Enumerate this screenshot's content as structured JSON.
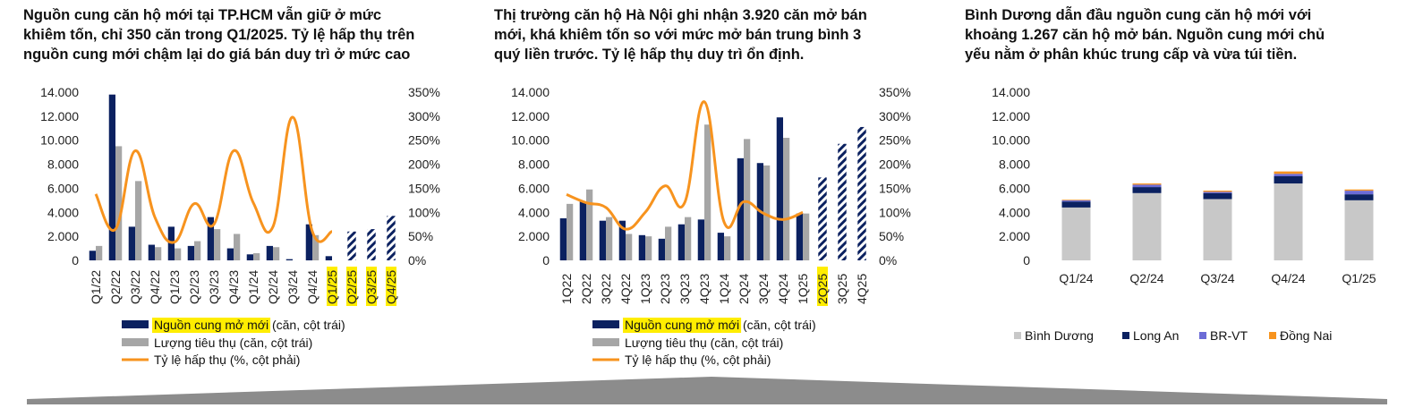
{
  "colors": {
    "supply": "#0b2160",
    "sales": "#a6a6a6",
    "absorption": "#f7931e",
    "highlight": "#ffed00",
    "binh_duong": "#c8c8c8",
    "long_an": "#0b2160",
    "br_vt": "#6b6bd6",
    "dong_nai": "#f7931e",
    "footer": "#8c8c8c"
  },
  "chart_data": [
    {
      "type": "bar",
      "title_lines": [
        "Nguồn cung căn hộ mới tại TP.HCM vẫn giữ ở mức",
        "khiêm tốn, chỉ 350 căn trong Q1/2025. Tỷ lệ hấp thụ trên",
        "nguồn cung mới chậm lại do giá bán duy trì ở mức cao"
      ],
      "categories": [
        "Q1/22",
        "Q2/22",
        "Q3/22",
        "Q4/22",
        "Q1/23",
        "Q2/23",
        "Q3/23",
        "Q4/23",
        "Q1/24",
        "Q2/24",
        "Q3/24",
        "Q4/24",
        "Q1/25",
        "Q2/25",
        "Q3/25",
        "Q4/25"
      ],
      "highlight_categories": [
        "Q1/25",
        "Q2/25",
        "Q3/25",
        "Q4/25"
      ],
      "y_left": {
        "ylim": [
          0,
          14000
        ],
        "ticks": [
          "0",
          "2.000",
          "4.000",
          "6.000",
          "8.000",
          "10.000",
          "12.000",
          "14.000"
        ]
      },
      "y_right": {
        "ylim": [
          0,
          350
        ],
        "ticks": [
          "0%",
          "50%",
          "100%",
          "150%",
          "200%",
          "250%",
          "300%",
          "350%"
        ]
      },
      "series": [
        {
          "key": "supply",
          "name": "Nguồn cung mở mới",
          "name_suffix": " (căn, cột trái)",
          "kind": "bar",
          "values": [
            800,
            13800,
            2800,
            1300,
            2800,
            1200,
            3600,
            1000,
            500,
            1200,
            100,
            3000,
            350,
            null,
            null,
            null
          ]
        },
        {
          "key": "sales",
          "name": "Lượng tiêu thụ (căn, cột trái)",
          "kind": "bar",
          "values": [
            1200,
            9500,
            6600,
            1100,
            1000,
            1600,
            2600,
            2200,
            600,
            1100,
            0,
            2100,
            null,
            null,
            null,
            null
          ]
        },
        {
          "key": "forecast",
          "kind": "hatched-bar",
          "values": [
            null,
            null,
            null,
            null,
            null,
            null,
            null,
            null,
            null,
            null,
            null,
            null,
            null,
            2400,
            2600,
            3700
          ]
        },
        {
          "key": "absorption",
          "name": "Tỷ lệ hấp thụ (%, cột phải)",
          "kind": "line",
          "values": [
            138,
            65,
            228,
            90,
            38,
            118,
            75,
            228,
            120,
            70,
            298,
            60,
            60,
            null,
            null,
            null
          ]
        }
      ]
    },
    {
      "type": "bar",
      "title_lines": [
        "Thị trường căn hộ Hà Nội ghi nhận 3.920 căn mở bán",
        "mới, khá khiêm tốn so với mức mở bán trung bình 3",
        "quý liền trước. Tỷ lệ hấp thụ duy trì ổn định."
      ],
      "categories": [
        "1Q22",
        "2Q22",
        "3Q22",
        "4Q22",
        "1Q23",
        "2Q23",
        "3Q23",
        "4Q23",
        "1Q24",
        "2Q24",
        "3Q24",
        "4Q24",
        "1Q25",
        "2Q25",
        "3Q25",
        "4Q25"
      ],
      "highlight_categories": [
        "2Q25"
      ],
      "y_left": {
        "ylim": [
          0,
          14000
        ],
        "ticks": [
          "0",
          "2.000",
          "4.000",
          "6.000",
          "8.000",
          "10.000",
          "12.000",
          "14.000"
        ]
      },
      "y_right": {
        "ylim": [
          0,
          350
        ],
        "ticks": [
          "0%",
          "50%",
          "100%",
          "150%",
          "200%",
          "250%",
          "300%",
          "350%"
        ]
      },
      "series": [
        {
          "key": "supply",
          "name": "Nguồn cung mở mới",
          "name_suffix": " (căn, cột trái)",
          "kind": "bar",
          "values": [
            3500,
            4900,
            3300,
            3300,
            2100,
            1800,
            3000,
            3400,
            2300,
            8500,
            8100,
            11900,
            3900,
            null,
            null,
            null
          ]
        },
        {
          "key": "sales",
          "name": "Lượng tiêu thụ (căn, cột trái)",
          "kind": "bar",
          "values": [
            4700,
            5900,
            3600,
            2200,
            2000,
            2800,
            3600,
            11300,
            2000,
            10100,
            7900,
            10200,
            3900,
            null,
            null,
            null
          ]
        },
        {
          "key": "forecast",
          "kind": "hatched-bar",
          "values": [
            null,
            null,
            null,
            null,
            null,
            null,
            null,
            null,
            null,
            null,
            null,
            null,
            null,
            6900,
            9700,
            11100
          ]
        },
        {
          "key": "absorption",
          "name": "Tỷ lệ hấp thụ (%, cột phải)",
          "kind": "line",
          "values": [
            137,
            120,
            110,
            65,
            100,
            155,
            120,
            330,
            80,
            122,
            98,
            85,
            100,
            null,
            null,
            null
          ]
        }
      ]
    },
    {
      "type": "bar",
      "stacked": true,
      "title_lines": [
        "Bình Dương dẫn đầu nguồn cung căn hộ mới với",
        "khoảng 1.267 căn hộ mở bán. Nguồn cung mới chủ",
        "yếu nằm ở phân khúc trung cấp và vừa túi tiền."
      ],
      "categories": [
        "Q1/24",
        "Q2/24",
        "Q3/24",
        "Q4/24",
        "Q1/25"
      ],
      "y_left": {
        "ylim": [
          0,
          14000
        ],
        "ticks": [
          "0",
          "2.000",
          "4.000",
          "6.000",
          "8.000",
          "10.000",
          "12.000",
          "14.000"
        ]
      },
      "series": [
        {
          "key": "binh_duong",
          "name": "Bình Dương",
          "values": [
            4400,
            5600,
            5100,
            6400,
            5000
          ]
        },
        {
          "key": "long_an",
          "name": "Long An",
          "values": [
            500,
            500,
            500,
            600,
            500
          ]
        },
        {
          "key": "br_vt",
          "name": "BR-VT",
          "values": [
            100,
            200,
            100,
            200,
            300
          ]
        },
        {
          "key": "dong_nai",
          "name": "Đồng Nai",
          "values": [
            50,
            100,
            100,
            200,
            100
          ]
        }
      ]
    }
  ]
}
